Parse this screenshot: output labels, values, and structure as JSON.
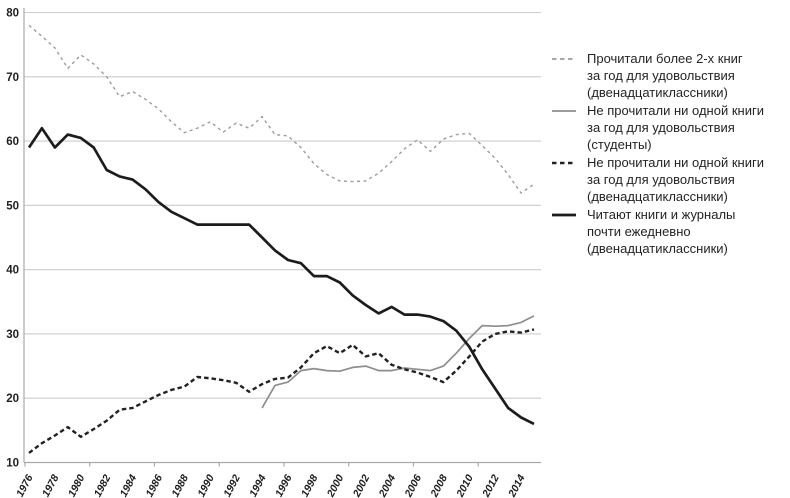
{
  "chart_data": {
    "type": "line",
    "title": "",
    "xlabel": "",
    "ylabel": "",
    "ylim": [
      10,
      80
    ],
    "y_ticks": [
      10,
      20,
      30,
      40,
      50,
      60,
      70,
      80
    ],
    "x_range": [
      1976,
      2015
    ],
    "x_axis_labels": [
      "1976",
      "1978",
      "1980",
      "1982",
      "1984",
      "1986",
      "1988",
      "1990",
      "1992",
      "1994",
      "1996",
      "1998",
      "2000",
      "2002",
      "2004",
      "2006",
      "2008",
      "2010",
      "2012",
      "2014"
    ],
    "grid": "horizontal",
    "legend_position": "right",
    "colors": {
      "light_gray": "#9c9c9c",
      "mid_gray": "#8e8e8e",
      "dark": "#1c1c1c",
      "gridline": "#cccccc",
      "axis": "#a9a9a9"
    },
    "series": [
      {
        "id": "read-more-than-2-books",
        "legend_lines": [
          "Прочитали более 2-х книг",
          "за год для удовольствия",
          "(двенадцатиклассники)"
        ],
        "style": "dashed",
        "color": "#9c9c9c",
        "width": 1.4,
        "dash": "3 3.5",
        "start_year": 1976,
        "values": [
          78,
          76.3,
          74.5,
          71.3,
          73.4,
          72,
          70,
          66.9,
          67.7,
          66.5,
          65,
          63,
          61.3,
          62,
          63,
          61.4,
          62.8,
          62,
          63.8,
          61,
          60.8,
          59,
          56.5,
          54.8,
          53.8,
          53.7,
          53.8,
          55,
          56.8,
          58.8,
          60.2,
          58.4,
          60.3,
          61,
          61.2,
          59.3,
          57.3,
          54.8,
          51.9,
          53.3
        ]
      },
      {
        "id": "no-books-students",
        "legend_lines": [
          "Не прочитали ни одной книги",
          "за год для удовольствия",
          "(студенты)"
        ],
        "style": "solid",
        "color": "#8e8e8e",
        "width": 1.7,
        "dash": "",
        "start_year": 1994,
        "values": [
          18.5,
          22,
          22.5,
          24.3,
          24.6,
          24.3,
          24.2,
          24.8,
          25,
          24.3,
          24.3,
          24.7,
          24.5,
          24.3,
          25,
          27,
          29.3,
          31.3,
          31.2,
          31.3,
          31.8,
          32.8
        ]
      },
      {
        "id": "no-books-12th-graders",
        "legend_lines": [
          "Не прочитали ни одной книги",
          "за год для удовольствия",
          "(двенадцатиклассники)"
        ],
        "style": "dashed",
        "color": "#222222",
        "width": 2.4,
        "dash": "4.5 3",
        "start_year": 1976,
        "values": [
          11.5,
          13,
          14.2,
          15.5,
          14,
          15.2,
          16.5,
          18.2,
          18.5,
          19.5,
          20.5,
          21.3,
          21.8,
          23.3,
          23.1,
          22.8,
          22.4,
          21,
          22.2,
          23,
          23.2,
          24.8,
          27,
          28.1,
          27,
          28.3,
          26.5,
          27,
          25.2,
          24.5,
          24,
          23.3,
          22.5,
          24.3,
          26.5,
          28.8,
          30,
          30.4,
          30.2,
          30.7
        ]
      },
      {
        "id": "read-daily-12th-graders",
        "legend_lines": [
          "Читают книги и журналы",
          "почти ежедневно",
          "(двенадцатиклассники)"
        ],
        "style": "solid",
        "color": "#1c1c1c",
        "width": 2.7,
        "dash": "",
        "start_year": 1976,
        "values": [
          59,
          62,
          59,
          61,
          60.5,
          59,
          55.5,
          54.5,
          54,
          52.5,
          50.5,
          49,
          48,
          47,
          47,
          47,
          47,
          47,
          45,
          43,
          41.5,
          41,
          39,
          39,
          38,
          36,
          34.5,
          33.2,
          34.2,
          33,
          33,
          32.7,
          32,
          30.5,
          28,
          24.5,
          21.5,
          18.5,
          17,
          16
        ]
      }
    ]
  }
}
